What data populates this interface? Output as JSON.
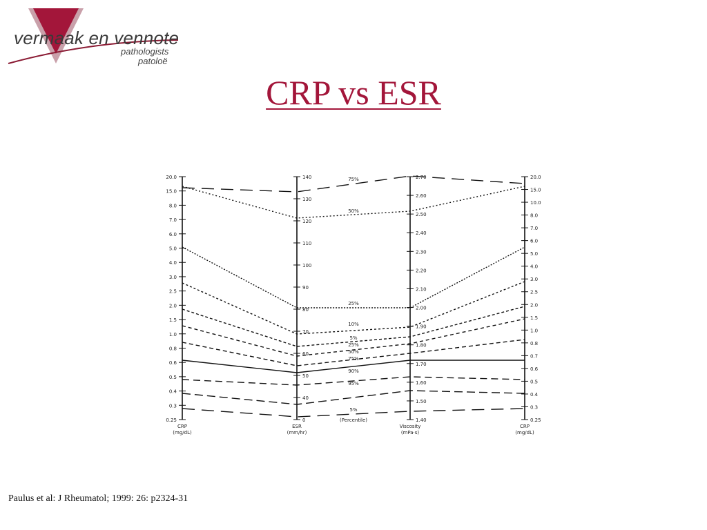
{
  "logo": {
    "brand": "vermaak en vennote",
    "tagline1": "pathologists",
    "tagline2": "patoloë",
    "colors": {
      "triangle": "#a3163a",
      "triangle_light": "#c9a0aa",
      "swoosh": "#8a1a33"
    }
  },
  "slide": {
    "title": "CRP vs ESR",
    "title_color": "#a3163a"
  },
  "nomogram": {
    "axes": [
      {
        "id": "crp-left",
        "caption": [
          "CRP",
          "(mg/dL)"
        ],
        "ticks": [
          "20.0",
          "15.0",
          "8.0",
          "7.0",
          "6.0",
          "5.0",
          "4.0",
          "3.0",
          "2.5",
          "2.0",
          "1.5",
          "1.0",
          "0.8",
          "0.6",
          "0.5",
          "0.4",
          "0.3",
          "0.25"
        ]
      },
      {
        "id": "esr",
        "caption": [
          "ESR",
          "(mm/hr)"
        ],
        "ticks": [
          "140",
          "130",
          "120",
          "110",
          "100",
          "90",
          "80",
          "70",
          "60",
          "50",
          "40",
          "0"
        ]
      },
      {
        "id": "viscosity",
        "caption": [
          "Viscosity",
          "(mPa·s)"
        ],
        "ticks": [
          "2.70",
          "2.60",
          "2.50",
          "2.40",
          "2.30",
          "2.20",
          "2.10",
          "2.00",
          "1.90",
          "1.80",
          "1.70",
          "1.60",
          "1.50",
          "1.40"
        ]
      },
      {
        "id": "crp-right",
        "caption": [
          "CRP",
          "(mg/dL)"
        ],
        "ticks": [
          "20.0",
          "15.0",
          "10.0",
          "8.0",
          "7.0",
          "6.0",
          "5.0",
          "4.0",
          "3.0",
          "2.5",
          "2.0",
          "1.5",
          "1.0",
          "0.8",
          "0.7",
          "0.6",
          "0.5",
          "0.4",
          "0.3",
          "0.25"
        ]
      }
    ],
    "percent_labels": [
      "75%",
      "50%",
      "25%",
      "10%",
      "5%",
      "25%",
      "50%",
      "75%",
      "90%",
      "95%",
      "5%"
    ],
    "middle_caption": "(Percentile)"
  },
  "citation": "Paulus et al: J Rheumatol; 1999: 26: p2324-31"
}
